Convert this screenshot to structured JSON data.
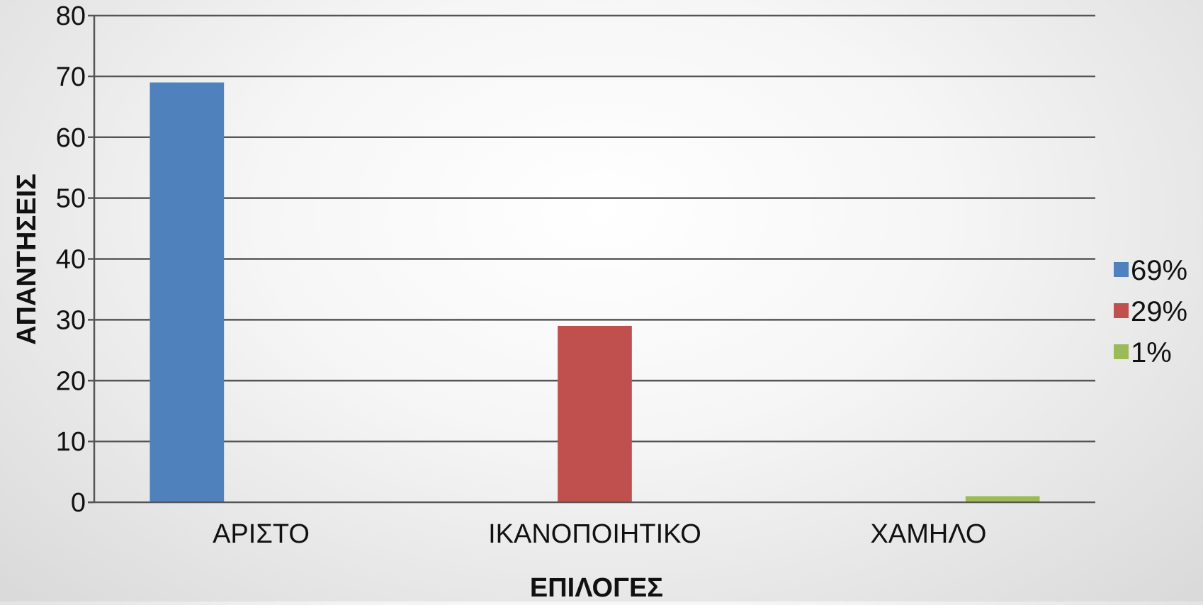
{
  "chart_data": {
    "type": "bar",
    "title": "",
    "xlabel": "ΕΠΙΛΟΓΕΣ",
    "ylabel": "ΑΠΑΝΤΗΣΕΙΣ",
    "ylim": [
      0,
      80
    ],
    "ytick_step": 10,
    "grid": true,
    "legend_position": "right",
    "categories": [
      "ΑΡΙΣΤΟ",
      "ΙΚΑΝΟΠΟΙΗΤΙΚΟ",
      "ΧΑΜΗΛΟ"
    ],
    "series": [
      {
        "name": "69%",
        "color": "#4f81bd",
        "values": [
          69,
          null,
          null
        ]
      },
      {
        "name": "29%",
        "color": "#c0504d",
        "values": [
          null,
          29,
          null
        ]
      },
      {
        "name": "1%",
        "color": "#9bbb59",
        "values": [
          null,
          null,
          1
        ]
      }
    ]
  }
}
